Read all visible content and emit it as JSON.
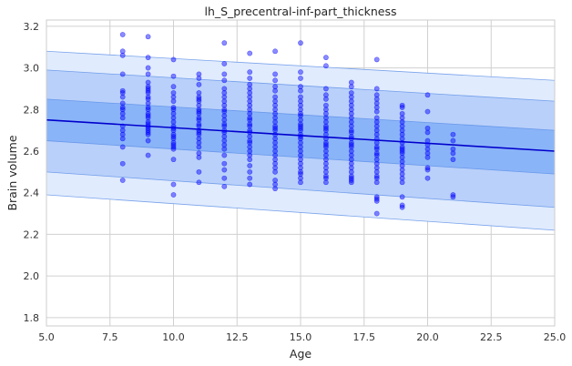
{
  "chart_data": {
    "type": "scatter",
    "title": "lh_S_precentral-inf-part_thickness",
    "xlabel": "Age",
    "ylabel": "Brain volume",
    "xlim": [
      5.0,
      25.0
    ],
    "ylim": [
      1.76,
      3.23
    ],
    "xticks": [
      5.0,
      7.5,
      10.0,
      12.5,
      15.0,
      17.5,
      20.0,
      22.5,
      25.0
    ],
    "xtick_labels": [
      "5.0",
      "7.5",
      "10.0",
      "12.5",
      "15.0",
      "17.5",
      "20.0",
      "22.5",
      "25.0"
    ],
    "yticks": [
      1.8,
      2.0,
      2.2,
      2.4,
      2.6,
      2.8,
      3.0,
      3.2
    ],
    "ytick_labels": [
      "1.8",
      "2.0",
      "2.2",
      "2.4",
      "2.6",
      "2.8",
      "3.0",
      "3.2"
    ],
    "grid": true,
    "colors": {
      "points": "#0000ff",
      "mean_line": "#0000cc",
      "band_inner": "#8ab4f8",
      "band_middle": "#b9d0fa",
      "band_outer": "#e0ebfd",
      "band_edge": "#5b8fe6",
      "grid": "#d0d0d0"
    },
    "mean_line": {
      "x": [
        5,
        25
      ],
      "y": [
        2.75,
        2.6
      ]
    },
    "bands": [
      {
        "level": "outer",
        "x": [
          5,
          25
        ],
        "lower": [
          2.39,
          2.22
        ],
        "upper": [
          3.08,
          2.94
        ]
      },
      {
        "level": "middle",
        "x": [
          5,
          25
        ],
        "lower": [
          2.5,
          2.33
        ],
        "upper": [
          2.99,
          2.84
        ]
      },
      {
        "level": "inner",
        "x": [
          5,
          25
        ],
        "lower": [
          2.65,
          2.49
        ],
        "upper": [
          2.85,
          2.7
        ]
      }
    ],
    "points": {
      "x": [
        8,
        8,
        8,
        8,
        8,
        8,
        8,
        8,
        8,
        8,
        8,
        8,
        8,
        8,
        8,
        8,
        8,
        8,
        8,
        9,
        9,
        9,
        9,
        9,
        9,
        9,
        9,
        9,
        9,
        9,
        9,
        9,
        9,
        9,
        9,
        9,
        9,
        9,
        9,
        9,
        9,
        9,
        9,
        9,
        9,
        10,
        10,
        10,
        10,
        10,
        10,
        10,
        10,
        10,
        10,
        10,
        10,
        10,
        10,
        10,
        10,
        10,
        10,
        10,
        10,
        10,
        10,
        10,
        10,
        11,
        11,
        11,
        11,
        11,
        11,
        11,
        11,
        11,
        11,
        11,
        11,
        11,
        11,
        11,
        11,
        11,
        11,
        11,
        11,
        11,
        11,
        11,
        11,
        11,
        12,
        12,
        12,
        12,
        12,
        12,
        12,
        12,
        12,
        12,
        12,
        12,
        12,
        12,
        12,
        12,
        12,
        12,
        12,
        12,
        12,
        12,
        12,
        12,
        12,
        12,
        13,
        13,
        13,
        13,
        13,
        13,
        13,
        13,
        13,
        13,
        13,
        13,
        13,
        13,
        13,
        13,
        13,
        13,
        13,
        13,
        13,
        13,
        13,
        13,
        13,
        13,
        13,
        13,
        14,
        14,
        14,
        14,
        14,
        14,
        14,
        14,
        14,
        14,
        14,
        14,
        14,
        14,
        14,
        14,
        14,
        14,
        14,
        14,
        14,
        14,
        14,
        14,
        14,
        14,
        14,
        14,
        15,
        15,
        15,
        15,
        15,
        15,
        15,
        15,
        15,
        15,
        15,
        15,
        15,
        15,
        15,
        15,
        15,
        15,
        15,
        15,
        15,
        15,
        15,
        15,
        15,
        15,
        15,
        15,
        15,
        15,
        16,
        16,
        16,
        16,
        16,
        16,
        16,
        16,
        16,
        16,
        16,
        16,
        16,
        16,
        16,
        16,
        16,
        16,
        16,
        16,
        16,
        16,
        16,
        16,
        16,
        16,
        16,
        17,
        17,
        17,
        17,
        17,
        17,
        17,
        17,
        17,
        17,
        17,
        17,
        17,
        17,
        17,
        17,
        17,
        17,
        17,
        17,
        17,
        17,
        17,
        17,
        17,
        17,
        17,
        17,
        18,
        18,
        18,
        18,
        18,
        18,
        18,
        18,
        18,
        18,
        18,
        18,
        18,
        18,
        18,
        18,
        18,
        18,
        18,
        18,
        18,
        18,
        18,
        18,
        18,
        18,
        18,
        18,
        18,
        19,
        19,
        19,
        19,
        19,
        19,
        19,
        19,
        19,
        19,
        19,
        19,
        19,
        19,
        19,
        19,
        19,
        19,
        19,
        19,
        19,
        19,
        19,
        19,
        20,
        20,
        20,
        20,
        20,
        20,
        20,
        20,
        20,
        20,
        20,
        20,
        21,
        21,
        21,
        21,
        21,
        21,
        21
      ],
      "y": [
        3.16,
        3.08,
        3.06,
        2.97,
        2.89,
        2.88,
        2.86,
        2.83,
        2.81,
        2.8,
        2.78,
        2.76,
        2.72,
        2.7,
        2.68,
        2.66,
        2.62,
        2.54,
        2.46,
        3.15,
        3.05,
        3.0,
        2.97,
        2.93,
        2.91,
        2.9,
        2.89,
        2.88,
        2.86,
        2.85,
        2.83,
        2.81,
        2.8,
        2.78,
        2.77,
        2.76,
        2.74,
        2.73,
        2.72,
        2.71,
        2.7,
        2.69,
        2.68,
        2.65,
        2.58,
        3.04,
        2.96,
        2.91,
        2.88,
        2.86,
        2.84,
        2.81,
        2.8,
        2.78,
        2.76,
        2.74,
        2.72,
        2.71,
        2.7,
        2.68,
        2.67,
        2.66,
        2.64,
        2.63,
        2.62,
        2.61,
        2.56,
        2.44,
        2.39,
        2.97,
        2.95,
        2.92,
        2.88,
        2.86,
        2.85,
        2.84,
        2.82,
        2.8,
        2.79,
        2.78,
        2.76,
        2.75,
        2.73,
        2.72,
        2.7,
        2.69,
        2.68,
        2.66,
        2.64,
        2.62,
        2.59,
        2.57,
        2.5,
        2.45,
        3.12,
        3.02,
        2.97,
        2.94,
        2.9,
        2.88,
        2.86,
        2.84,
        2.82,
        2.8,
        2.79,
        2.77,
        2.75,
        2.73,
        2.72,
        2.7,
        2.69,
        2.67,
        2.65,
        2.63,
        2.61,
        2.58,
        2.54,
        2.51,
        2.47,
        2.43,
        3.07,
        2.98,
        2.95,
        2.92,
        2.9,
        2.88,
        2.86,
        2.84,
        2.82,
        2.8,
        2.78,
        2.76,
        2.75,
        2.73,
        2.72,
        2.7,
        2.69,
        2.67,
        2.65,
        2.64,
        2.62,
        2.6,
        2.58,
        2.56,
        2.53,
        2.5,
        2.47,
        2.44,
        3.08,
        2.97,
        2.94,
        2.91,
        2.89,
        2.86,
        2.84,
        2.82,
        2.8,
        2.78,
        2.76,
        2.74,
        2.72,
        2.71,
        2.7,
        2.68,
        2.66,
        2.64,
        2.62,
        2.6,
        2.58,
        2.56,
        2.54,
        2.52,
        2.5,
        2.46,
        2.44,
        2.42,
        3.12,
        2.98,
        2.95,
        2.91,
        2.89,
        2.86,
        2.84,
        2.82,
        2.8,
        2.78,
        2.77,
        2.75,
        2.73,
        2.72,
        2.71,
        2.7,
        2.68,
        2.67,
        2.66,
        2.64,
        2.62,
        2.6,
        2.58,
        2.56,
        2.54,
        2.52,
        2.5,
        2.49,
        2.47,
        2.45,
        3.05,
        3.01,
        2.9,
        2.87,
        2.85,
        2.82,
        2.8,
        2.78,
        2.76,
        2.74,
        2.72,
        2.71,
        2.7,
        2.68,
        2.66,
        2.64,
        2.63,
        2.62,
        2.6,
        2.58,
        2.56,
        2.54,
        2.52,
        2.5,
        2.48,
        2.47,
        2.45,
        2.93,
        2.91,
        2.88,
        2.86,
        2.84,
        2.82,
        2.8,
        2.78,
        2.76,
        2.74,
        2.72,
        2.7,
        2.69,
        2.67,
        2.66,
        2.64,
        2.63,
        2.62,
        2.6,
        2.58,
        2.56,
        2.54,
        2.52,
        2.5,
        2.48,
        2.47,
        2.46,
        2.45,
        3.04,
        2.9,
        2.87,
        2.85,
        2.83,
        2.81,
        2.79,
        2.76,
        2.74,
        2.72,
        2.7,
        2.68,
        2.66,
        2.64,
        2.62,
        2.61,
        2.59,
        2.58,
        2.56,
        2.54,
        2.52,
        2.5,
        2.48,
        2.47,
        2.45,
        2.38,
        2.37,
        2.36,
        2.3,
        2.82,
        2.81,
        2.78,
        2.76,
        2.74,
        2.72,
        2.7,
        2.68,
        2.66,
        2.64,
        2.62,
        2.61,
        2.6,
        2.59,
        2.57,
        2.55,
        2.53,
        2.51,
        2.49,
        2.47,
        2.45,
        2.38,
        2.34,
        2.33,
        2.87,
        2.79,
        2.71,
        2.69,
        2.65,
        2.63,
        2.61,
        2.59,
        2.57,
        2.52,
        2.51,
        2.47,
        2.68,
        2.65,
        2.61,
        2.59,
        2.56,
        2.39,
        2.38
      ]
    }
  }
}
